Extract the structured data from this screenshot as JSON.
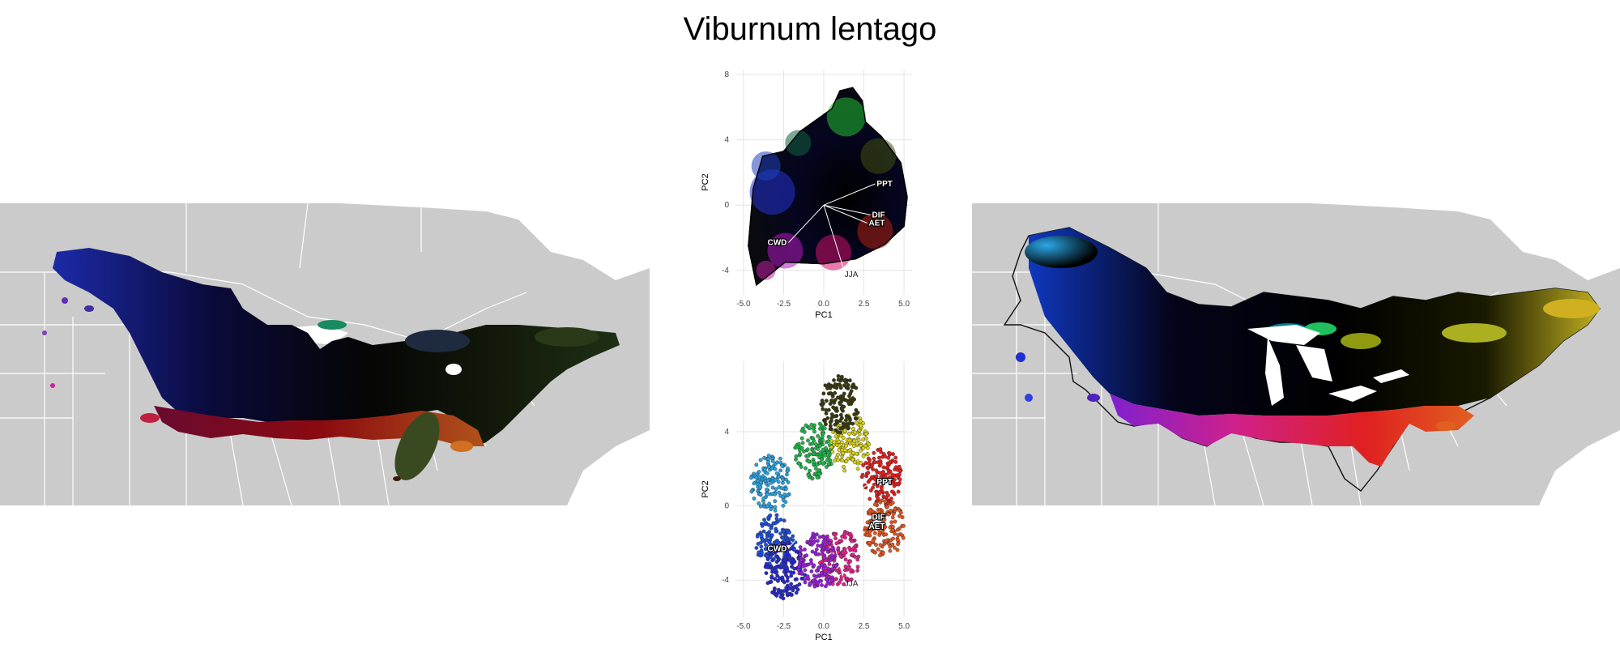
{
  "title": "Viburnum lentago",
  "chart_data": [
    {
      "type": "scatter",
      "panel": "top",
      "xlabel": "PC1",
      "ylabel": "PC2",
      "xlim": [
        -5.5,
        5.5
      ],
      "ylim": [
        -5.5,
        8.3
      ],
      "x_ticks": [
        "-5.0",
        "-2.5",
        "0.0",
        "2.5",
        "5.0"
      ],
      "x_tick_values": [
        -5,
        -2.5,
        0,
        2.5,
        5
      ],
      "y_ticks": [
        "-4",
        "0",
        "4",
        "8"
      ],
      "y_tick_values": [
        -4,
        0,
        4,
        8
      ],
      "grid": true,
      "vectors": [
        {
          "label": "PPT",
          "x": 3.2,
          "y": 1.3
        },
        {
          "label": "DIF",
          "x": 2.9,
          "y": -0.6
        },
        {
          "label": "AET",
          "x": 2.7,
          "y": -1.1
        },
        {
          "label": "CWD",
          "x": -2.2,
          "y": -2.3
        },
        {
          "label": "JJA",
          "x": 1.2,
          "y": -3.8
        }
      ],
      "hull": [
        [
          -4.2,
          -4.9
        ],
        [
          -4.7,
          -2.5
        ],
        [
          -4.4,
          1.0
        ],
        [
          -3.8,
          3.0
        ],
        [
          -2.5,
          3.3
        ],
        [
          -1.5,
          4.5
        ],
        [
          0.5,
          5.9
        ],
        [
          1.0,
          7.0
        ],
        [
          1.8,
          7.2
        ],
        [
          2.4,
          6.4
        ],
        [
          2.6,
          5.1
        ],
        [
          3.6,
          4.2
        ],
        [
          4.8,
          2.6
        ],
        [
          5.2,
          0.5
        ],
        [
          5.0,
          -1.3
        ],
        [
          3.8,
          -2.4
        ],
        [
          2.0,
          -3.3
        ],
        [
          0.0,
          -3.6
        ],
        [
          -2.4,
          -3.5
        ],
        [
          -4.2,
          -4.9
        ]
      ]
    },
    {
      "type": "scatter",
      "panel": "bottom",
      "xlabel": "PC1",
      "ylabel": "PC2",
      "xlim": [
        -5.5,
        5.5
      ],
      "ylim": [
        -6.0,
        7.8
      ],
      "x_ticks": [
        "-5.0",
        "-2.5",
        "0.0",
        "2.5",
        "5.0"
      ],
      "x_tick_values": [
        -5,
        -2.5,
        0,
        2.5,
        5
      ],
      "y_ticks": [
        "-4",
        "0",
        "4"
      ],
      "y_tick_values": [
        -4,
        0,
        4
      ],
      "grid": true,
      "vectors": [
        {
          "label": "PPT",
          "x": 3.2,
          "y": 1.3
        },
        {
          "label": "DIF",
          "x": 2.9,
          "y": -0.6
        },
        {
          "label": "AET",
          "x": 2.7,
          "y": -1.1
        },
        {
          "label": "CWD",
          "x": -2.2,
          "y": -2.3
        },
        {
          "label": "JJA",
          "x": 1.2,
          "y": -3.8
        }
      ],
      "clusters": [
        {
          "color": "#29a3e0",
          "x": -3.3,
          "y": 1.2
        },
        {
          "color": "#1f4fe0",
          "x": -3.0,
          "y": -2.0
        },
        {
          "color": "#2a2ad0",
          "x": -2.4,
          "y": -3.5
        },
        {
          "color": "#1fb54a",
          "x": -0.6,
          "y": 3.0
        },
        {
          "color": "#d7d21a",
          "x": 1.6,
          "y": 3.4
        },
        {
          "color": "#3a3a10",
          "x": 1.0,
          "y": 5.5
        },
        {
          "color": "#e52020",
          "x": 3.6,
          "y": 1.6
        },
        {
          "color": "#e4561f",
          "x": 3.8,
          "y": -1.2
        },
        {
          "color": "#e0218a",
          "x": 1.0,
          "y": -2.8
        },
        {
          "color": "#9a20d8",
          "x": -0.4,
          "y": -3.0
        }
      ]
    }
  ]
}
